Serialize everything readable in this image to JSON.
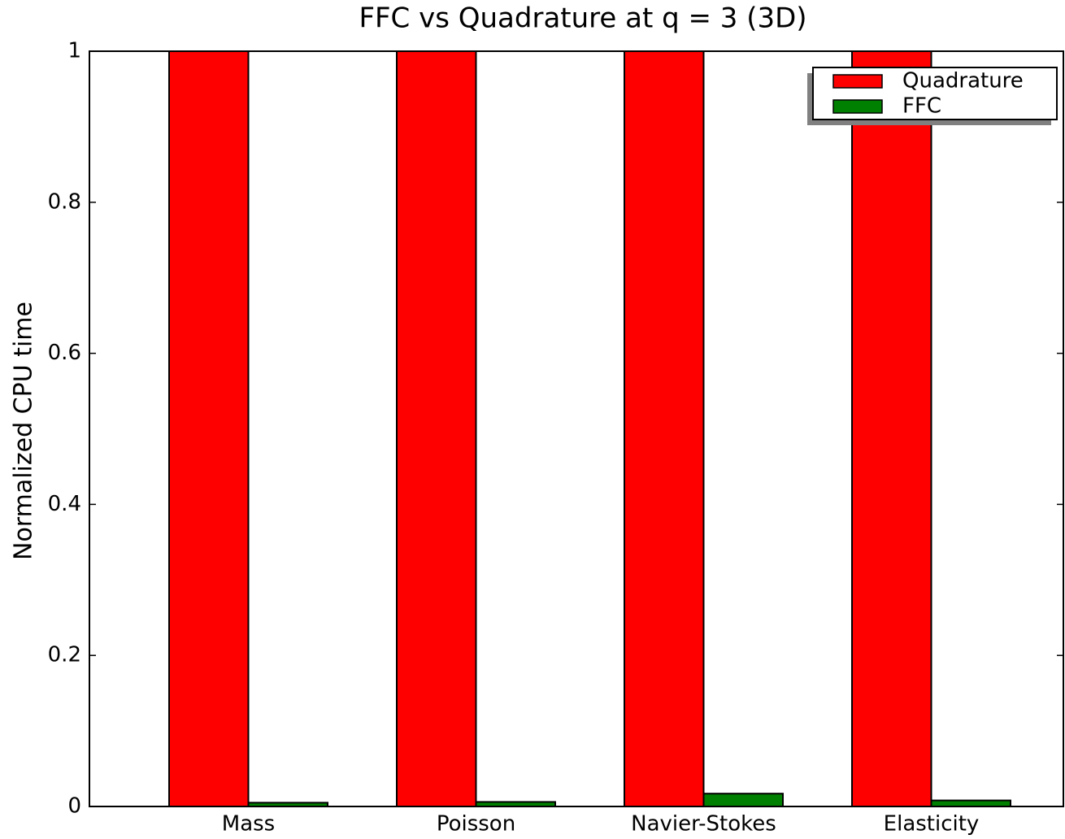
{
  "chart_data": {
    "type": "bar",
    "title": "FFC vs Quadrature at q = 3 (3D)",
    "ylabel": "Normalized CPU time",
    "categories": [
      "Mass",
      "Poisson",
      "Navier-Stokes",
      "Elasticity"
    ],
    "series": [
      {
        "name": "Quadrature",
        "color": "#ff0000",
        "values": [
          1,
          1,
          1,
          1
        ]
      },
      {
        "name": "FFC",
        "color": "#008000",
        "values": [
          0.005,
          0.006,
          0.017,
          0.008
        ]
      }
    ],
    "ylim": [
      0,
      1
    ],
    "yticks": [
      0,
      0.2,
      0.4,
      0.6,
      0.8,
      1
    ],
    "legend": "upper right"
  }
}
